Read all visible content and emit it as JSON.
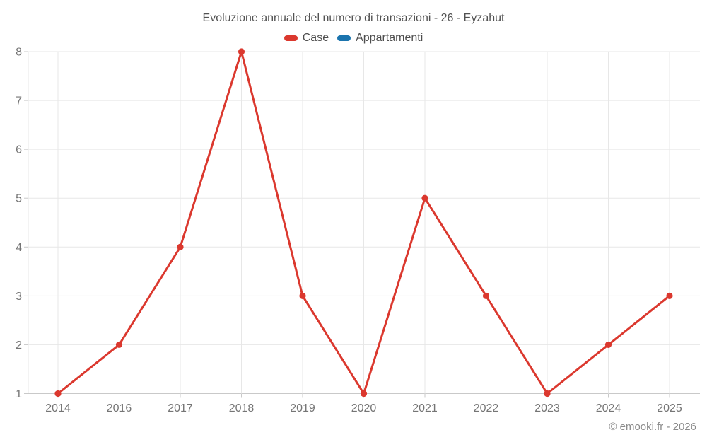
{
  "footer": {
    "text": "© emooki.fr - 2026"
  },
  "chart_data": {
    "type": "line",
    "title": "Evoluzione annuale del numero di transazioni - 26 - Eyzahut",
    "categories": [
      "2014",
      "2016",
      "2017",
      "2018",
      "2019",
      "2020",
      "2021",
      "2022",
      "2023",
      "2024",
      "2025"
    ],
    "series": [
      {
        "name": "Case",
        "color": "#db382e",
        "values": [
          1,
          2,
          4,
          8,
          3,
          1,
          5,
          3,
          1,
          2,
          3
        ]
      },
      {
        "name": "Appartamenti",
        "color": "#1b74ae",
        "values": []
      }
    ],
    "xlabel": "",
    "ylabel": "",
    "ylim": [
      1,
      8
    ],
    "yticks": [
      1,
      2,
      3,
      4,
      5,
      6,
      7,
      8
    ],
    "grid": true,
    "legend_position": "top",
    "marker": "circle",
    "colors": {
      "grid": "#e7e7e7",
      "axis": "#c9c9c9",
      "tick_label": "#757575",
      "title": "#525252",
      "legend_text": "#4d4d4d",
      "footer": "#8a8a8a"
    }
  }
}
